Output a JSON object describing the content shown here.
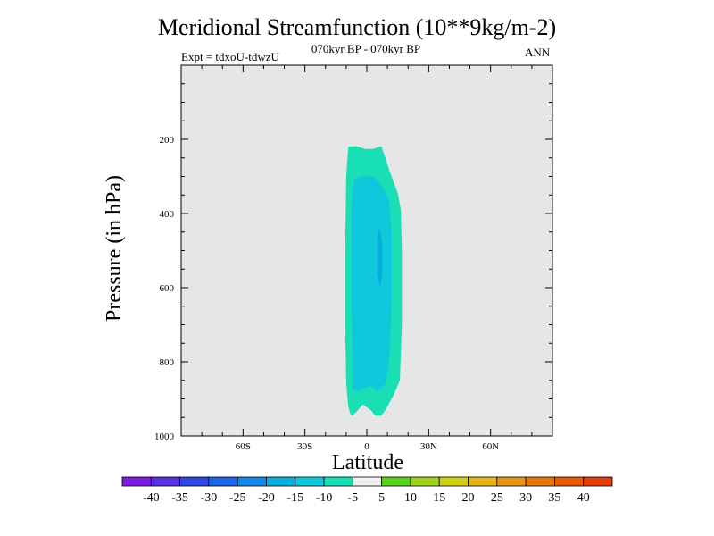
{
  "chart_data": {
    "type": "contour",
    "title": "Meridional Streamfunction (10**9kg/m-2)",
    "subtitle": "070kyr BP - 070kyr BP",
    "left_label": "Expt = tdxoU-tdwzU",
    "right_label": "ANN",
    "xlabel": "Latitude",
    "ylabel": "Pressure (in hPa)",
    "xlim": [
      -90,
      90
    ],
    "ylim": [
      1000,
      0
    ],
    "x_ticks": [
      {
        "value": -60,
        "label": "60S"
      },
      {
        "value": -30,
        "label": "30S"
      },
      {
        "value": 0,
        "label": "0"
      },
      {
        "value": 30,
        "label": "30N"
      },
      {
        "value": 60,
        "label": "60N"
      }
    ],
    "y_ticks": [
      {
        "value": 200,
        "label": "200"
      },
      {
        "value": 400,
        "label": "400"
      },
      {
        "value": 600,
        "label": "600"
      },
      {
        "value": 800,
        "label": "800"
      },
      {
        "value": 1000,
        "label": "1000"
      }
    ],
    "background_color": "#e6e6e6",
    "contours": [
      {
        "level_range": [
          -10,
          -5
        ],
        "color": "#19e0b4",
        "outline": [
          [
            -9,
            220
          ],
          [
            -5,
            218
          ],
          [
            -1,
            226
          ],
          [
            3,
            226
          ],
          [
            7,
            218
          ],
          [
            9,
            250
          ],
          [
            11,
            285
          ],
          [
            13,
            315
          ],
          [
            15,
            345
          ],
          [
            16.5,
            390
          ],
          [
            17,
            500
          ],
          [
            17,
            700
          ],
          [
            16,
            850
          ],
          [
            13,
            890
          ],
          [
            9,
            930
          ],
          [
            7,
            945
          ],
          [
            4,
            945
          ],
          [
            2,
            930
          ],
          [
            -2,
            915
          ],
          [
            -5,
            935
          ],
          [
            -7,
            945
          ],
          [
            -8,
            940
          ],
          [
            -9,
            920
          ],
          [
            -10,
            860
          ],
          [
            -10.5,
            700
          ],
          [
            -10.5,
            500
          ],
          [
            -10,
            300
          ]
        ]
      },
      {
        "level_range": [
          -15,
          -10
        ],
        "color": "#0fc8dc",
        "outline": [
          [
            -6,
            305
          ],
          [
            -2,
            298
          ],
          [
            3,
            300
          ],
          [
            6,
            315
          ],
          [
            9,
            340
          ],
          [
            11,
            370
          ],
          [
            12,
            450
          ],
          [
            12,
            650
          ],
          [
            11,
            790
          ],
          [
            9,
            860
          ],
          [
            5,
            880
          ],
          [
            2,
            865
          ],
          [
            -1,
            870
          ],
          [
            -4,
            880
          ],
          [
            -7,
            875
          ],
          [
            -7,
            800
          ],
          [
            -7.5,
            600
          ],
          [
            -7.5,
            400
          ],
          [
            -7,
            340
          ]
        ]
      },
      {
        "level_range": [
          -20,
          -15
        ],
        "color": "#0aaedc",
        "outline": [
          [
            6,
            435
          ],
          [
            7.5,
            480
          ],
          [
            7.5,
            560
          ],
          [
            6.5,
            605
          ],
          [
            5,
            560
          ],
          [
            5,
            480
          ]
        ]
      }
    ],
    "colorbar": {
      "labels": [
        "-40",
        "-35",
        "-30",
        "-25",
        "-20",
        "-15",
        "-10",
        "-5",
        "5",
        "10",
        "15",
        "20",
        "25",
        "30",
        "35",
        "40"
      ],
      "colors": [
        "#7d1ee6",
        "#5a32e6",
        "#3246e6",
        "#1e64e6",
        "#1487e6",
        "#0aaedc",
        "#0fc8dc",
        "#19e0b4",
        "#f0f0f0",
        "#5ad21e",
        "#a0d21e",
        "#d2d214",
        "#e6b414",
        "#e69614",
        "#e6780a",
        "#e65a0a",
        "#e63c0a"
      ]
    }
  }
}
